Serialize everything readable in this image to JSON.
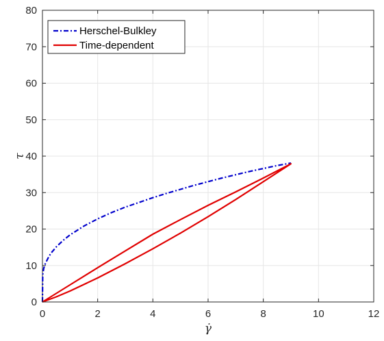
{
  "chart_data": {
    "type": "line",
    "xlabel": "γ̇",
    "ylabel": "τ",
    "xlim": [
      0,
      12
    ],
    "ylim": [
      0,
      80
    ],
    "xticks": [
      0,
      2,
      4,
      6,
      8,
      10,
      12
    ],
    "yticks": [
      0,
      10,
      20,
      30,
      40,
      50,
      60,
      70,
      80
    ],
    "grid": true,
    "legend_position": "top-left",
    "series": [
      {
        "name": "Herschel-Bulkley",
        "color": "#0000cc",
        "style": "dashdot",
        "x": [
          0,
          0.01,
          0.05,
          0.1,
          0.2,
          0.3,
          0.5,
          0.75,
          1,
          1.5,
          2,
          2.5,
          3,
          3.5,
          4,
          4.5,
          5,
          5.5,
          6,
          6.5,
          7,
          7.5,
          8,
          8.5,
          9
        ],
        "y": [
          0,
          7.5,
          9.3,
          10.4,
          12.0,
          13.3,
          15.1,
          16.9,
          18.4,
          20.8,
          22.8,
          24.5,
          26.0,
          27.3,
          28.6,
          29.8,
          30.9,
          32.0,
          33.0,
          34.0,
          34.9,
          35.8,
          36.6,
          37.4,
          38.1
        ]
      },
      {
        "name": "Time-dependent",
        "color": "#e00000",
        "style": "solid",
        "x": [
          0,
          1,
          2,
          3,
          4,
          5,
          6,
          7,
          8,
          9,
          8,
          7,
          6,
          5,
          4,
          3,
          2,
          1,
          0.5,
          0
        ],
        "y": [
          0,
          4.7,
          9.4,
          14.0,
          18.6,
          22.6,
          26.5,
          30.2,
          34.0,
          37.9,
          33.0,
          28.1,
          23.4,
          18.9,
          14.6,
          10.5,
          6.6,
          3.0,
          1.4,
          0
        ]
      }
    ]
  }
}
